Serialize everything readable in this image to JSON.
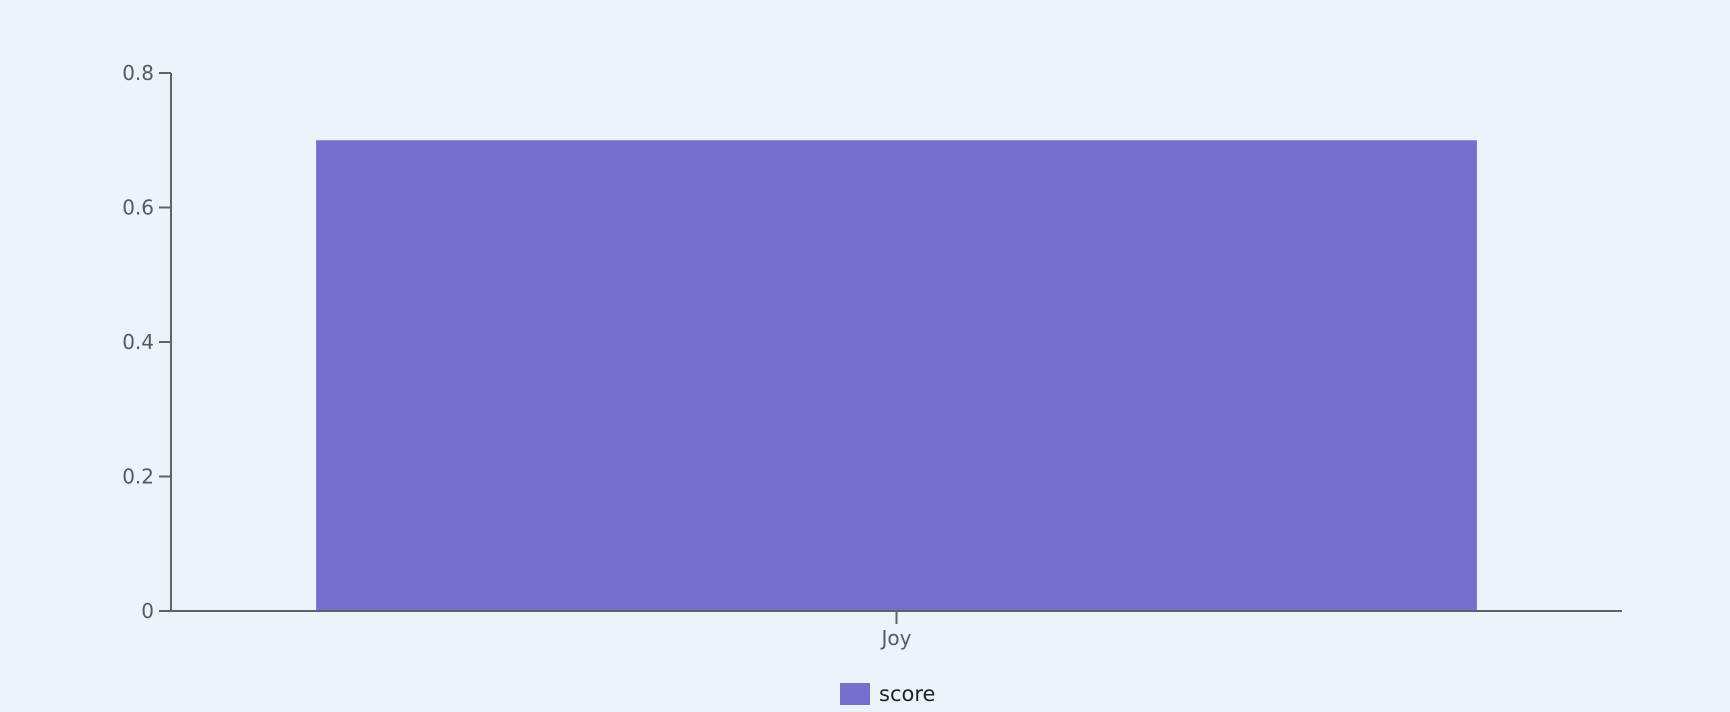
{
  "chart_data": {
    "type": "bar",
    "categories": [
      "Joy"
    ],
    "series": [
      {
        "name": "score",
        "values": [
          0.7
        ],
        "color": "#766fd0"
      }
    ],
    "ylim": [
      0,
      0.8
    ],
    "yticks": [
      0,
      0.2,
      0.4,
      0.6,
      0.8
    ],
    "ytick_labels": [
      "0",
      "0.2",
      "0.4",
      "0.6",
      "0.8"
    ],
    "xlabel": "",
    "ylabel": "",
    "title": "",
    "grid": false,
    "legend_position": "bottom-center"
  },
  "colors": {
    "background": "#eaf4fa",
    "axis": "#5f6368",
    "tick_text": "#555a60"
  }
}
